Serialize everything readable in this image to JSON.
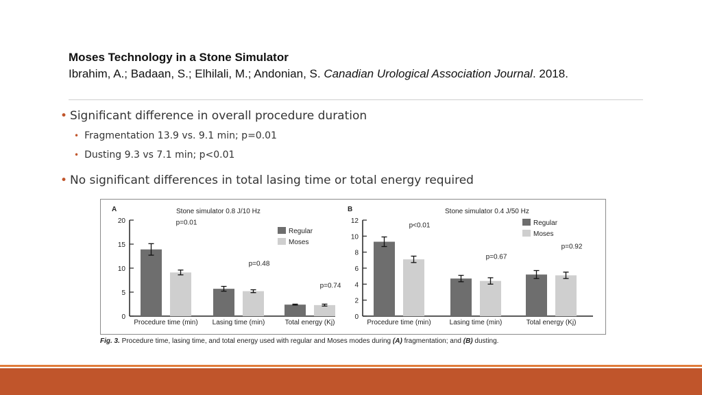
{
  "header": {
    "title": "Moses Technology in a Stone Simulator",
    "authors": "Ibrahim, A.; Badaan, S.; Elhilali, M.; Andonian, S. ",
    "journal": "Canadian Urological Association Journal",
    "year": ". 2018."
  },
  "bullets": {
    "b1": "Significant difference in overall procedure duration",
    "b1_sub1": "Fragmentation 13.9 vs. 9.1 min; p=0.01",
    "b1_sub2": "Dusting 9.3 vs 7.1 min; p<0.01",
    "b2": "No significant differences in total lasing time or total energy required"
  },
  "caption": {
    "fig": "Fig. 3.",
    "text_1": " Procedure time, lasing time, and total energy used with regular and Moses modes during ",
    "a": "(A)",
    "text_2": " fragmentation; and ",
    "b": "(B)",
    "text_3": " dusting."
  },
  "colors": {
    "regular": "#6e6e6e",
    "moses": "#cfcfcf",
    "accent": "#c0552b",
    "accent_light": "#e07b39"
  },
  "chart_data": [
    {
      "type": "bar",
      "panel": "A",
      "title": "Stone simulator 0.8 J/10 Hz",
      "categories": [
        "Procedure time (min)",
        "Lasing time (min)",
        "Total energy (Kj)"
      ],
      "series": [
        {
          "name": "Regular",
          "values": [
            13.9,
            5.7,
            2.4
          ],
          "errors": [
            1.2,
            0.5,
            0.1
          ]
        },
        {
          "name": "Moses",
          "values": [
            9.1,
            5.2,
            2.3
          ],
          "errors": [
            0.5,
            0.3,
            0.2
          ]
        }
      ],
      "annotations": [
        "p=0.01",
        "p=0.48",
        "p=0.74"
      ],
      "ylim": [
        0,
        20
      ],
      "yticks": [
        0,
        5,
        10,
        15,
        20
      ],
      "legend": "top-right"
    },
    {
      "type": "bar",
      "panel": "B",
      "title": "Stone simulator 0.4 J/50 Hz",
      "categories": [
        "Procedure time (min)",
        "Lasing time (min)",
        "Total energy (Kj)"
      ],
      "series": [
        {
          "name": "Regular",
          "values": [
            9.3,
            4.7,
            5.2
          ],
          "errors": [
            0.6,
            0.4,
            0.5
          ]
        },
        {
          "name": "Moses",
          "values": [
            7.1,
            4.4,
            5.1
          ],
          "errors": [
            0.4,
            0.4,
            0.4
          ]
        }
      ],
      "annotations": [
        "p<0.01",
        "p=0.67",
        "p=0.92"
      ],
      "ylim": [
        0,
        12
      ],
      "yticks": [
        0,
        2,
        4,
        6,
        8,
        10,
        12
      ],
      "legend": "top-right"
    }
  ]
}
